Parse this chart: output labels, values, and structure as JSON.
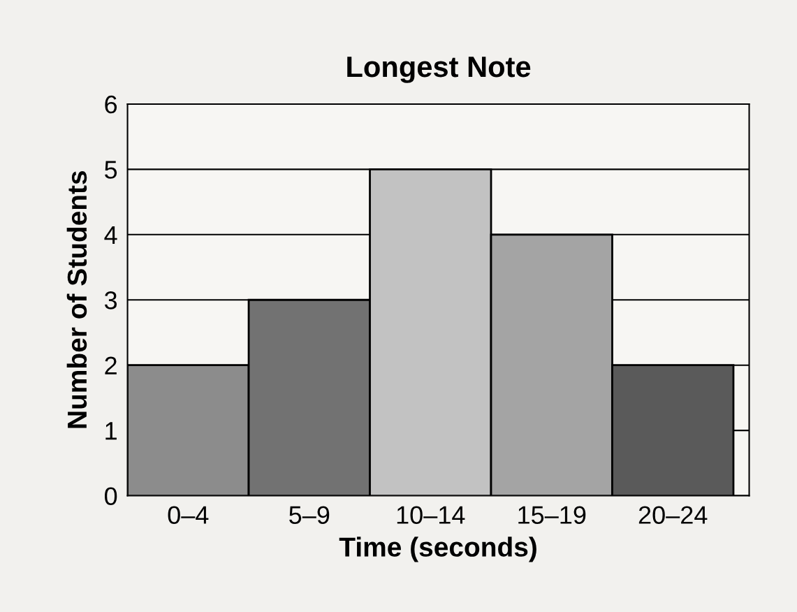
{
  "chart_data": {
    "type": "bar",
    "title": "Longest Note",
    "xlabel": "Time (seconds)",
    "ylabel": "Number of Students",
    "categories": [
      "0–4",
      "5–9",
      "10–14",
      "15–19",
      "20–24"
    ],
    "values": [
      2,
      3,
      5,
      4,
      2
    ],
    "colors": [
      "#8c8c8c",
      "#727272",
      "#c2c2c2",
      "#a4a4a4",
      "#5a5a5a"
    ],
    "ylim": [
      0,
      6
    ],
    "yticks": [
      0,
      1,
      2,
      3,
      4,
      5,
      6
    ],
    "grid": "y"
  }
}
